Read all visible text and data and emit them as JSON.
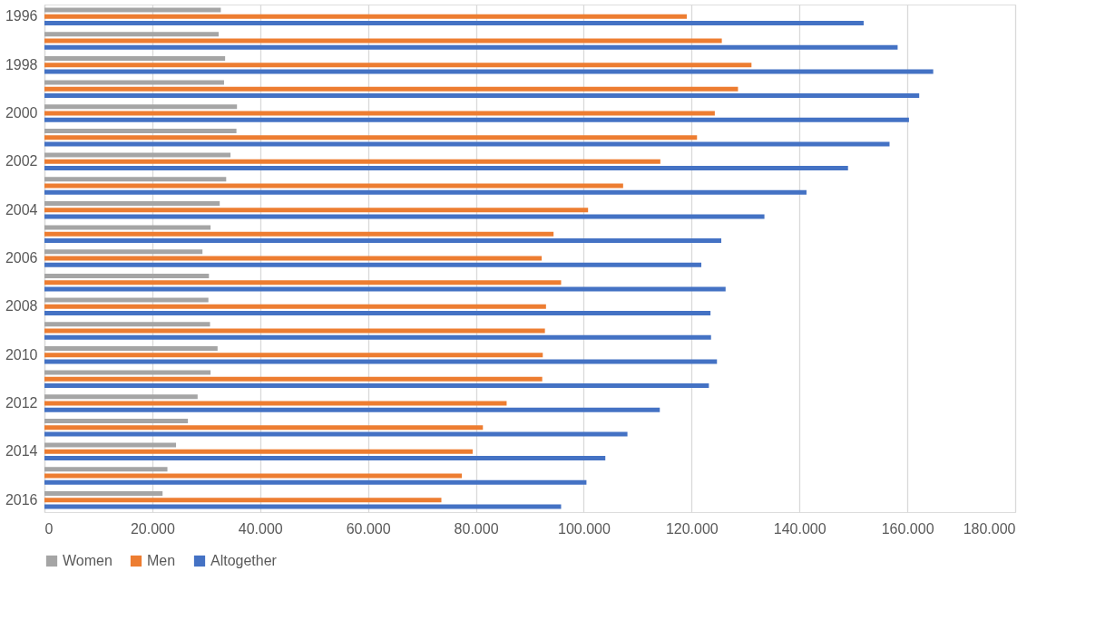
{
  "chart_data": {
    "type": "bar",
    "orientation": "horizontal",
    "categories": [
      "1996",
      null,
      "1998",
      null,
      "2000",
      null,
      "2002",
      null,
      "2004",
      null,
      "2006",
      null,
      "2008",
      null,
      "2010",
      null,
      "2012",
      null,
      "2014",
      null,
      "2016"
    ],
    "series": [
      {
        "name": "Women",
        "color": "#a5a5a5",
        "values": [
          32700,
          32300,
          33500,
          33300,
          35700,
          35600,
          34500,
          33700,
          32500,
          30800,
          29300,
          30500,
          30400,
          30700,
          32100,
          30800,
          28400,
          26600,
          24400,
          22800,
          21900
        ]
      },
      {
        "name": "Men",
        "color": "#ed7d31",
        "values": [
          119100,
          125600,
          131100,
          128600,
          124300,
          121000,
          114200,
          107300,
          100800,
          94400,
          92200,
          95800,
          93000,
          92800,
          92400,
          92300,
          85700,
          81300,
          79400,
          77400,
          73600
        ]
      },
      {
        "name": "Altogether",
        "color": "#4472c4",
        "values": [
          151900,
          158200,
          164800,
          162200,
          160300,
          156700,
          149000,
          141300,
          133500,
          125500,
          121800,
          126300,
          123500,
          123600,
          124700,
          123200,
          114100,
          108100,
          104000,
          100500,
          95800
        ]
      }
    ],
    "xlim": [
      0,
      180000
    ],
    "xticks": [
      0,
      {
        "value": 20000,
        "label": "20.000"
      },
      {
        "value": 40000,
        "label": "40.000"
      },
      {
        "value": 60000,
        "label": "60.000"
      },
      {
        "value": 80000,
        "label": "80.000"
      },
      {
        "value": 100000,
        "label": "100.000"
      },
      {
        "value": 120000,
        "label": "120.000"
      },
      {
        "value": 140000,
        "label": "140.000"
      },
      {
        "value": 160000,
        "label": "160.000"
      },
      {
        "value": 180000,
        "label": "180.000"
      }
    ],
    "grid": "x",
    "legend": "bottom"
  }
}
